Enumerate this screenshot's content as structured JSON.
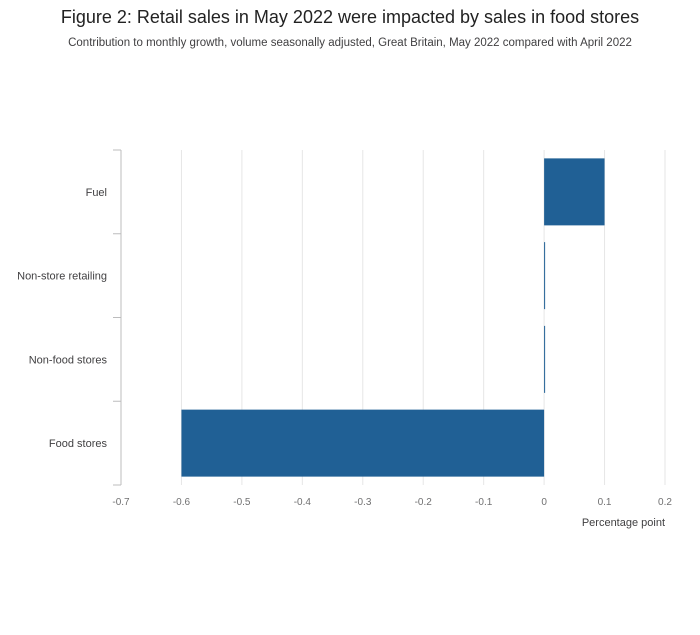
{
  "page": {
    "title": "Figure 2: Retail sales in May 2022 were impacted by sales in food stores",
    "subtitle": "Contribution to monthly growth, volume seasonally adjusted, Great Britain, May 2022 compared with April 2022"
  },
  "chart_data": {
    "type": "bar",
    "orientation": "horizontal",
    "title": "Figure 2: Retail sales in May 2022 were impacted by sales in food stores",
    "subtitle": "Contribution to monthly growth, volume seasonally adjusted, Great Britain, May 2022 compared with April 2022",
    "categories": [
      "Fuel",
      "Non-store retailing",
      "Non-food stores",
      "Food stores"
    ],
    "values": [
      0.1,
      0.0,
      0.0,
      -0.6
    ],
    "xlabel": "Percentage point",
    "ylabel": "",
    "xlim": [
      -0.7,
      0.2
    ],
    "xticks": [
      -0.7,
      -0.6,
      -0.5,
      -0.4,
      -0.3,
      -0.2,
      -0.1,
      0,
      0.1,
      0.2
    ],
    "xtick_labels": [
      "-0.7",
      "-0.6",
      "-0.5",
      "-0.4",
      "-0.3",
      "-0.2",
      "-0.1",
      "0",
      "0.1",
      "0.2"
    ],
    "grid": true,
    "legend": "none",
    "bar_color": "#206095",
    "gridline_color": "#e6e6e6",
    "axis_color": "#bcbcbd"
  }
}
